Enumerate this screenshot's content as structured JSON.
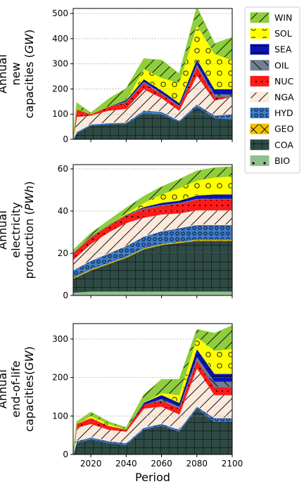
{
  "chart_data": [
    {
      "type": "area",
      "stacked": true,
      "ylabel_lines": [
        "Annual",
        "new",
        "capacities (GW)"
      ],
      "xlabel": "",
      "xlim": [
        2010,
        2100
      ],
      "ylim": [
        0,
        520
      ],
      "yticks": [
        0,
        100,
        200,
        300,
        400,
        500
      ],
      "grid": "horizontal dotted",
      "x": [
        2010,
        2012,
        2020,
        2030,
        2040,
        2050,
        2060,
        2070,
        2080,
        2090,
        2100
      ],
      "series": [
        {
          "name": "BIO",
          "values": [
            0,
            0,
            0,
            0,
            0,
            0,
            0,
            0,
            0,
            0,
            0
          ]
        },
        {
          "name": "COA",
          "values": [
            0,
            25,
            55,
            60,
            62,
            105,
            100,
            70,
            130,
            85,
            80
          ]
        },
        {
          "name": "GEO",
          "values": [
            0,
            0,
            0,
            0,
            0,
            0,
            0,
            0,
            0,
            0,
            0
          ]
        },
        {
          "name": "HYD",
          "values": [
            0,
            5,
            5,
            5,
            5,
            10,
            10,
            5,
            10,
            10,
            20
          ]
        },
        {
          "name": "NGA",
          "values": [
            0,
            60,
            35,
            50,
            55,
            85,
            55,
            40,
            115,
            60,
            70
          ]
        },
        {
          "name": "NUC",
          "values": [
            0,
            30,
            5,
            15,
            25,
            25,
            15,
            15,
            35,
            15,
            0
          ]
        },
        {
          "name": "OIL",
          "values": [
            0,
            0,
            0,
            0,
            5,
            5,
            5,
            5,
            10,
            10,
            10
          ]
        },
        {
          "name": "SEA",
          "values": [
            0,
            0,
            0,
            0,
            5,
            10,
            10,
            10,
            20,
            20,
            20
          ]
        },
        {
          "name": "SOL",
          "values": [
            0,
            0,
            0,
            0,
            0,
            40,
            50,
            80,
            135,
            140,
            115
          ]
        },
        {
          "name": "WIN",
          "values": [
            0,
            25,
            5,
            30,
            45,
            40,
            70,
            35,
            70,
            40,
            90
          ]
        }
      ]
    },
    {
      "type": "area",
      "stacked": true,
      "ylabel_lines": [
        "Annual",
        "electricity",
        "production (PWh)"
      ],
      "xlabel": "",
      "xlim": [
        2010,
        2100
      ],
      "ylim": [
        0,
        62
      ],
      "yticks": [
        0,
        20,
        40,
        60
      ],
      "grid": "horizontal dotted",
      "x": [
        2010,
        2020,
        2030,
        2040,
        2050,
        2060,
        2070,
        2080,
        2090,
        2100
      ],
      "series": [
        {
          "name": "BIO",
          "values": [
            1.5,
            2,
            2,
            2,
            2,
            2,
            2,
            2,
            2,
            2
          ]
        },
        {
          "name": "COA",
          "values": [
            6.5,
            10,
            13,
            16,
            20,
            22,
            23,
            24,
            24,
            24
          ]
        },
        {
          "name": "GEO",
          "values": [
            0.5,
            0.5,
            0.5,
            0.5,
            0.5,
            0.5,
            0.5,
            0.5,
            0.5,
            0.5
          ]
        },
        {
          "name": "HYD",
          "values": [
            3.5,
            4,
            4.5,
            5,
            5.5,
            6,
            6.5,
            7,
            7,
            7
          ]
        },
        {
          "name": "NGA",
          "values": [
            5,
            8,
            10,
            11,
            9,
            8,
            7,
            7,
            7,
            7
          ]
        },
        {
          "name": "NUC",
          "values": [
            3,
            3,
            3,
            3.5,
            4,
            4,
            4.5,
            5,
            5,
            5
          ]
        },
        {
          "name": "OIL",
          "values": [
            0.5,
            0.5,
            0.5,
            0.5,
            0.5,
            0.5,
            0.5,
            0.5,
            0.5,
            0.5
          ]
        },
        {
          "name": "SEA",
          "values": [
            0,
            0,
            0,
            0,
            0.5,
            1,
            1,
            1.5,
            2,
            2
          ]
        },
        {
          "name": "SOL",
          "values": [
            0,
            0,
            0,
            0.5,
            2,
            4,
            6,
            7,
            8,
            8.5
          ]
        },
        {
          "name": "WIN",
          "values": [
            1,
            1.5,
            2,
            2.5,
            3,
            3.5,
            4,
            4.5,
            4.5,
            4.5
          ]
        }
      ]
    },
    {
      "type": "area",
      "stacked": true,
      "ylabel_lines": [
        "Annual",
        "end-of-life",
        "capacities(GW)"
      ],
      "xlabel": "Period",
      "xlim": [
        2010,
        2100
      ],
      "ylim": [
        0,
        340
      ],
      "yticks": [
        0,
        100,
        200,
        300
      ],
      "xticks": [
        2020,
        2040,
        2060,
        2080,
        2100
      ],
      "grid": "horizontal dotted",
      "x": [
        2010,
        2012,
        2020,
        2030,
        2040,
        2050,
        2060,
        2070,
        2080,
        2090,
        2100
      ],
      "series": [
        {
          "name": "BIO",
          "values": [
            0,
            0,
            0,
            0,
            0,
            0,
            0,
            0,
            0,
            0,
            0
          ]
        },
        {
          "name": "COA",
          "values": [
            0,
            30,
            40,
            30,
            25,
            65,
            75,
            60,
            120,
            85,
            85
          ]
        },
        {
          "name": "GEO",
          "values": [
            0,
            0,
            0,
            0,
            0,
            0,
            0,
            0,
            0,
            0,
            0
          ]
        },
        {
          "name": "HYD",
          "values": [
            0,
            5,
            5,
            5,
            5,
            5,
            5,
            5,
            5,
            10,
            10
          ]
        },
        {
          "name": "NGA",
          "values": [
            0,
            35,
            35,
            30,
            30,
            50,
            45,
            40,
            100,
            60,
            60
          ]
        },
        {
          "name": "NUC",
          "values": [
            0,
            10,
            15,
            10,
            5,
            10,
            15,
            15,
            20,
            20,
            20
          ]
        },
        {
          "name": "OIL",
          "values": [
            0,
            0,
            0,
            0,
            0,
            0,
            5,
            5,
            10,
            15,
            15
          ]
        },
        {
          "name": "SEA",
          "values": [
            0,
            0,
            0,
            0,
            0,
            5,
            10,
            10,
            20,
            20,
            20
          ]
        },
        {
          "name": "SOL",
          "values": [
            0,
            0,
            5,
            5,
            0,
            0,
            5,
            20,
            30,
            60,
            65
          ]
        },
        {
          "name": "WIN",
          "values": [
            0,
            5,
            10,
            5,
            5,
            20,
            35,
            40,
            20,
            45,
            60
          ]
        }
      ]
    }
  ],
  "legend": {
    "placement": "right",
    "entries": [
      {
        "key": "WIN",
        "label": "WIN",
        "color": "#8fce3c",
        "pattern": "slash"
      },
      {
        "key": "SOL",
        "label": "SOL",
        "color": "#ffff00",
        "pattern": "circles"
      },
      {
        "key": "SEA",
        "label": "SEA",
        "color": "#0a14b4",
        "pattern": "hdash"
      },
      {
        "key": "OIL",
        "label": "OIL",
        "color": "#708090",
        "pattern": "backslash"
      },
      {
        "key": "NUC",
        "label": "NUC",
        "color": "#ff1a1a",
        "pattern": "dots"
      },
      {
        "key": "NGA",
        "label": "NGA",
        "color": "#fbe9dc",
        "pattern": "slash"
      },
      {
        "key": "HYD",
        "label": "HYD",
        "color": "#3d7cc9",
        "pattern": "smallcircles"
      },
      {
        "key": "GEO",
        "label": "GEO",
        "color": "#f2c200",
        "pattern": "cross"
      },
      {
        "key": "COA",
        "label": "COA",
        "color": "#2e4a45",
        "pattern": "grid"
      },
      {
        "key": "BIO",
        "label": "BIO",
        "color": "#8fbf8f",
        "pattern": "bigdots"
      }
    ]
  }
}
